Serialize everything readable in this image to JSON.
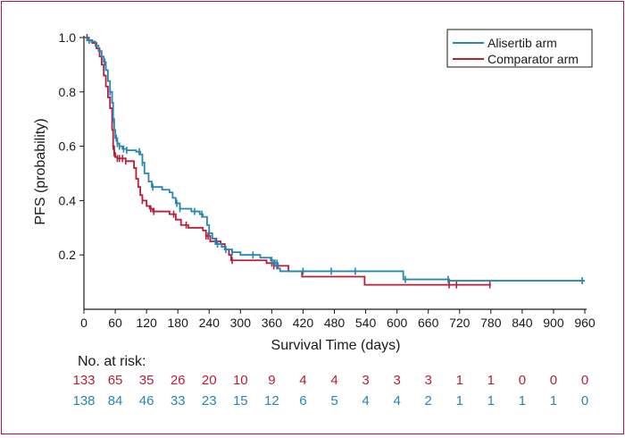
{
  "chart_data": {
    "type": "line",
    "subtype": "kaplan-meier",
    "xlabel": "Survival Time (days)",
    "ylabel": "PFS (probability)",
    "xlim": [
      0,
      960
    ],
    "ylim": [
      0,
      1.0
    ],
    "xticks": [
      0,
      60,
      120,
      180,
      240,
      300,
      360,
      420,
      480,
      540,
      600,
      660,
      720,
      780,
      840,
      900,
      960
    ],
    "yticks": [
      0.2,
      0.4,
      0.6,
      0.8,
      1.0
    ],
    "ytick_labels": [
      "0.2",
      "0.4",
      "0.6",
      "0.8",
      "1.0"
    ],
    "grid": false,
    "legend_position": "top-right",
    "series": [
      {
        "name": "Alisertib arm",
        "color": "#2a85b3",
        "steps": [
          [
            0,
            1.0
          ],
          [
            6,
            0.99
          ],
          [
            14,
            0.985
          ],
          [
            22,
            0.97
          ],
          [
            28,
            0.95
          ],
          [
            34,
            0.93
          ],
          [
            38,
            0.91
          ],
          [
            42,
            0.88
          ],
          [
            46,
            0.84
          ],
          [
            50,
            0.8
          ],
          [
            54,
            0.76
          ],
          [
            56,
            0.7
          ],
          [
            58,
            0.66
          ],
          [
            60,
            0.63
          ],
          [
            64,
            0.61
          ],
          [
            68,
            0.6
          ],
          [
            74,
            0.59
          ],
          [
            82,
            0.585
          ],
          [
            100,
            0.58
          ],
          [
            108,
            0.57
          ],
          [
            112,
            0.54
          ],
          [
            116,
            0.5
          ],
          [
            124,
            0.47
          ],
          [
            130,
            0.45
          ],
          [
            150,
            0.44
          ],
          [
            164,
            0.43
          ],
          [
            170,
            0.41
          ],
          [
            176,
            0.39
          ],
          [
            184,
            0.37
          ],
          [
            206,
            0.36
          ],
          [
            222,
            0.35
          ],
          [
            228,
            0.34
          ],
          [
            236,
            0.31
          ],
          [
            240,
            0.28
          ],
          [
            246,
            0.26
          ],
          [
            252,
            0.24
          ],
          [
            264,
            0.23
          ],
          [
            270,
            0.22
          ],
          [
            284,
            0.21
          ],
          [
            300,
            0.2
          ],
          [
            338,
            0.19
          ],
          [
            358,
            0.18
          ],
          [
            364,
            0.17
          ],
          [
            372,
            0.15
          ],
          [
            376,
            0.14
          ],
          [
            612,
            0.11
          ],
          [
            700,
            0.105
          ],
          [
            960,
            0.105
          ]
        ],
        "censor_x": [
          10,
          40,
          50,
          56,
          62,
          64,
          68,
          76,
          82,
          106,
          112,
          132,
          178,
          184,
          212,
          226,
          240,
          256,
          272,
          284,
          324,
          360,
          366,
          370,
          420,
          474,
          520,
          616,
          698,
          955
        ]
      },
      {
        "name": "Comparator arm",
        "color": "#b41f3c",
        "steps": [
          [
            0,
            1.0
          ],
          [
            8,
            0.99
          ],
          [
            16,
            0.98
          ],
          [
            24,
            0.96
          ],
          [
            30,
            0.93
          ],
          [
            34,
            0.9
          ],
          [
            38,
            0.86
          ],
          [
            42,
            0.82
          ],
          [
            46,
            0.78
          ],
          [
            50,
            0.74
          ],
          [
            54,
            0.66
          ],
          [
            56,
            0.6
          ],
          [
            58,
            0.575
          ],
          [
            60,
            0.56
          ],
          [
            64,
            0.555
          ],
          [
            80,
            0.545
          ],
          [
            96,
            0.52
          ],
          [
            100,
            0.48
          ],
          [
            104,
            0.45
          ],
          [
            108,
            0.42
          ],
          [
            112,
            0.4
          ],
          [
            120,
            0.38
          ],
          [
            126,
            0.37
          ],
          [
            132,
            0.36
          ],
          [
            148,
            0.36
          ],
          [
            164,
            0.35
          ],
          [
            176,
            0.33
          ],
          [
            186,
            0.31
          ],
          [
            200,
            0.3
          ],
          [
            228,
            0.29
          ],
          [
            234,
            0.27
          ],
          [
            242,
            0.25
          ],
          [
            262,
            0.24
          ],
          [
            270,
            0.22
          ],
          [
            278,
            0.2
          ],
          [
            282,
            0.18
          ],
          [
            350,
            0.17
          ],
          [
            364,
            0.16
          ],
          [
            392,
            0.14
          ],
          [
            418,
            0.12
          ],
          [
            538,
            0.09
          ],
          [
            700,
            0.09
          ],
          [
            780,
            0.09
          ]
        ],
        "censor_x": [
          6,
          56,
          58,
          64,
          68,
          74,
          80,
          112,
          128,
          134,
          172,
          196,
          234,
          238,
          254,
          284,
          360,
          364,
          370,
          700,
          714,
          778
        ]
      }
    ]
  },
  "risk_table": {
    "label": "No. at risk:",
    "rows": [
      {
        "arm": "Comparator arm",
        "color": "#b41f3c",
        "counts": [
          "133",
          "65",
          "35",
          "26",
          "20",
          "10",
          "9",
          "4",
          "4",
          "3",
          "3",
          "3",
          "1",
          "1",
          "0",
          "0",
          "0"
        ]
      },
      {
        "arm": "Alisertib arm",
        "color": "#2a85b3",
        "counts": [
          "138",
          "84",
          "46",
          "33",
          "23",
          "15",
          "12",
          "6",
          "5",
          "4",
          "4",
          "2",
          "1",
          "1",
          "1",
          "1",
          "0"
        ]
      }
    ]
  },
  "colors": {
    "frame_border": "#a4154a",
    "axis": "#1a1a1a"
  }
}
